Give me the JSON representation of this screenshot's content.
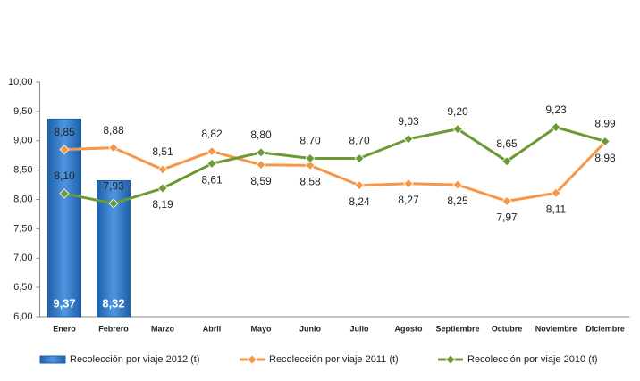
{
  "chart_data": {
    "type": "line",
    "categories": [
      "Enero",
      "Febrero",
      "Marzo",
      "Abril",
      "Mayo",
      "Junio",
      "Julio",
      "Agosto",
      "Septiembre",
      "Octubre",
      "Noviembre",
      "Diciembre"
    ],
    "series": [
      {
        "name": "Recolección por viaje 2012 (t)",
        "type": "bar",
        "color": "#2f78c8",
        "values": [
          9.37,
          8.32,
          null,
          null,
          null,
          null,
          null,
          null,
          null,
          null,
          null,
          null
        ],
        "value_labels": [
          "9,37",
          "8,32",
          null,
          null,
          null,
          null,
          null,
          null,
          null,
          null,
          null,
          null
        ]
      },
      {
        "name": "Recolección por viaje 2011 (t)",
        "type": "line",
        "color": "#f79646",
        "values": [
          8.85,
          8.88,
          8.51,
          8.82,
          8.59,
          8.58,
          8.24,
          8.27,
          8.25,
          7.97,
          8.11,
          8.98
        ],
        "value_labels": [
          "8,85",
          "8,88",
          "8,51",
          "8,82",
          "8,59",
          "8,58",
          "8,24",
          "8,27",
          "8,25",
          "7,97",
          "8,11",
          "8,98"
        ]
      },
      {
        "name": "Recolección por viaje 2010 (t)",
        "type": "line",
        "color": "#6b9a35",
        "values": [
          8.1,
          7.93,
          8.19,
          8.61,
          8.8,
          8.7,
          8.7,
          9.03,
          9.2,
          8.65,
          9.23,
          8.99
        ],
        "value_labels": [
          "8,10",
          "7,93",
          "8,19",
          "8,61",
          "8,80",
          "8,70",
          "8,70",
          "9,03",
          "9,20",
          "8,65",
          "9,23",
          "8,99"
        ]
      }
    ],
    "ylim": [
      6,
      10
    ],
    "yticks": [
      {
        "value": 6,
        "label": "6,00"
      },
      {
        "value": 6.5,
        "label": "6,50"
      },
      {
        "value": 7,
        "label": "7,00"
      },
      {
        "value": 7.5,
        "label": "7,50"
      },
      {
        "value": 8,
        "label": "8,00"
      },
      {
        "value": 8.5,
        "label": "8,50"
      },
      {
        "value": 9,
        "label": "9,00"
      },
      {
        "value": 9.5,
        "label": "9,50"
      },
      {
        "value": 10,
        "label": "10,00"
      }
    ],
    "grid": false,
    "legend": "bottom"
  }
}
